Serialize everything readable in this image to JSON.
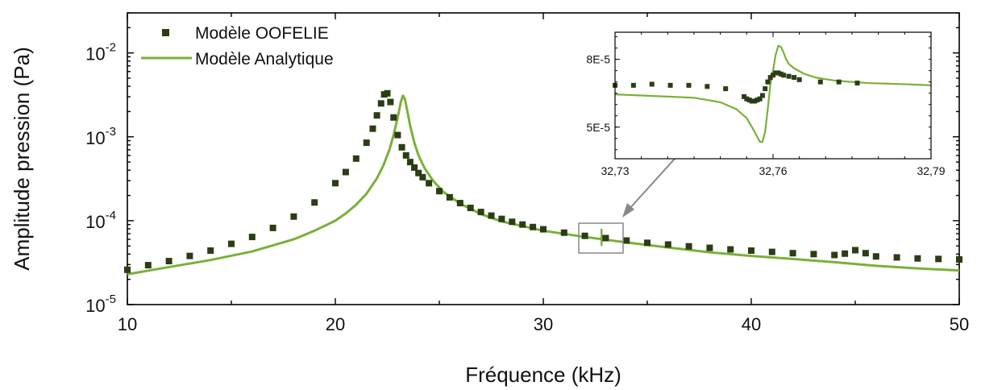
{
  "chart_data": [
    {
      "type": "line",
      "xlabel": "Fréquence (kHz)",
      "ylabel": "Amplitude pression (Pa)",
      "xlim": [
        10,
        50
      ],
      "ylim": [
        1e-05,
        0.03
      ],
      "yscale": "log",
      "grid": false,
      "legend_placement": "top-left",
      "x_ticks": [
        {
          "value": 10,
          "label": "10"
        },
        {
          "value": 20,
          "label": "20"
        },
        {
          "value": 30,
          "label": "30"
        },
        {
          "value": 40,
          "label": "40"
        },
        {
          "value": 50,
          "label": "50"
        }
      ],
      "y_ticks": [
        {
          "value": 1e-05,
          "base": "10",
          "exp": "-5"
        },
        {
          "value": 0.0001,
          "base": "10",
          "exp": "-4"
        },
        {
          "value": 0.001,
          "base": "10",
          "exp": "-3"
        },
        {
          "value": 0.01,
          "base": "10",
          "exp": "-2"
        }
      ],
      "series": [
        {
          "name": "Modèle OOFELIE",
          "kind": "scatter",
          "marker": "square",
          "color": "#2b3d14",
          "x": [
            10,
            11,
            12,
            13,
            14,
            15,
            16,
            17,
            18,
            19,
            20,
            20.5,
            21,
            21.5,
            21.8,
            22.0,
            22.2,
            22.35,
            22.5,
            22.65,
            22.8,
            23.0,
            23.2,
            23.4,
            23.6,
            23.8,
            24.0,
            24.2,
            24.5,
            25,
            25.5,
            26,
            26.5,
            27,
            27.5,
            28,
            28.5,
            29,
            29.5,
            30,
            31,
            32,
            33,
            34,
            35,
            36,
            37,
            38,
            39,
            40,
            41,
            42,
            43,
            44,
            44.5,
            45,
            45.5,
            46,
            47,
            48,
            49,
            50
          ],
          "y": [
            2.6e-05,
            2.95e-05,
            3.3e-05,
            3.8e-05,
            4.4e-05,
            5.3e-05,
            6.4e-05,
            8.2e-05,
            0.000112,
            0.000165,
            0.00028,
            0.00038,
            0.00055,
            0.00085,
            0.00125,
            0.0018,
            0.0025,
            0.0032,
            0.0033,
            0.0026,
            0.0017,
            0.00105,
            0.00075,
            0.0006,
            0.0005,
            0.00043,
            0.00037,
            0.00033,
            0.00028,
            0.000225,
            0.00019,
            0.000162,
            0.000142,
            0.000127,
            0.000115,
            0.000105,
            9.7e-05,
            9e-05,
            8.4e-05,
            7.9e-05,
            7.2e-05,
            6.6e-05,
            6.2e-05,
            5.8e-05,
            5.45e-05,
            5.2e-05,
            4.95e-05,
            4.75e-05,
            4.55e-05,
            4.4e-05,
            4.25e-05,
            4.1e-05,
            4e-05,
            3.9e-05,
            4.05e-05,
            4.45e-05,
            4.1e-05,
            3.75e-05,
            3.65e-05,
            3.55e-05,
            3.5e-05,
            3.45e-05
          ]
        },
        {
          "name": "Modèle Analytique",
          "kind": "line",
          "color": "#7ab03a",
          "x": [
            10,
            12,
            14,
            16,
            18,
            19,
            20,
            20.5,
            21,
            21.5,
            22,
            22.3,
            22.6,
            22.8,
            23.0,
            23.15,
            23.25,
            23.35,
            23.45,
            23.6,
            23.8,
            24.0,
            24.3,
            24.7,
            25.2,
            26,
            27,
            28,
            30,
            32,
            34,
            36,
            38,
            40,
            42,
            44,
            46,
            48,
            50
          ],
          "y": [
            2.3e-05,
            2.8e-05,
            3.4e-05,
            4.3e-05,
            6e-05,
            7.6e-05,
            0.0001,
            0.000122,
            0.000155,
            0.00021,
            0.00032,
            0.00045,
            0.0007,
            0.00105,
            0.0017,
            0.0026,
            0.0031,
            0.0028,
            0.0021,
            0.00135,
            0.00085,
            0.0006,
            0.00042,
            0.0003,
            0.00022,
            0.00016,
            0.00012,
            9.8e-05,
            7.6e-05,
            6.4e-05,
            5.5e-05,
            4.8e-05,
            4.2e-05,
            3.8e-05,
            3.5e-05,
            3.2e-05,
            2.9e-05,
            2.7e-05,
            2.55e-05
          ]
        }
      ]
    },
    {
      "type": "line",
      "role": "inset",
      "xlim": [
        32.73,
        32.79
      ],
      "ylim": [
        3.6e-05,
        9.2e-05
      ],
      "x_ticks": [
        {
          "value": 32.73,
          "label": "32,73"
        },
        {
          "value": 32.76,
          "label": "32,76"
        },
        {
          "value": 32.79,
          "label": "32,79"
        }
      ],
      "y_ticks": [
        {
          "value": 5e-05,
          "label": "5E-5"
        },
        {
          "value": 8e-05,
          "label": "8E-5"
        }
      ],
      "series": [
        {
          "name": "Modèle OOFELIE",
          "kind": "scatter",
          "marker": "square",
          "color": "#2b3d14",
          "x": [
            32.73,
            32.7335,
            32.737,
            32.7405,
            32.744,
            32.7475,
            32.751,
            32.7545,
            32.755,
            32.7555,
            32.756,
            32.7565,
            32.757,
            32.7575,
            32.758,
            32.7585,
            32.759,
            32.7595,
            32.76,
            32.7605,
            32.761,
            32.7615,
            32.762,
            32.763,
            32.764,
            32.765,
            32.769,
            32.7725,
            32.776
          ],
          "y": [
            6.85e-05,
            6.85e-05,
            6.9e-05,
            6.85e-05,
            6.85e-05,
            6.8e-05,
            6.7e-05,
            6.35e-05,
            6.25e-05,
            6.2e-05,
            6.15e-05,
            6.15e-05,
            6.2e-05,
            6.25e-05,
            6.4e-05,
            6.7e-05,
            7e-05,
            7.2e-05,
            7.3e-05,
            7.4e-05,
            7.4e-05,
            7.35e-05,
            7.3e-05,
            7.25e-05,
            7.2e-05,
            7.1e-05,
            7e-05,
            7e-05,
            6.95e-05
          ]
        },
        {
          "name": "Modèle Analytique",
          "kind": "line",
          "color": "#7ab03a",
          "x": [
            32.73,
            32.735,
            32.74,
            32.745,
            32.75,
            32.753,
            32.755,
            32.7565,
            32.7575,
            32.758,
            32.7585,
            32.759,
            32.7595,
            32.76,
            32.7605,
            32.761,
            32.7615,
            32.762,
            32.7625,
            32.763,
            32.764,
            32.766,
            32.768,
            32.772,
            32.778,
            32.785,
            32.79
          ],
          "y": [
            6.45e-05,
            6.4e-05,
            6.35e-05,
            6.3e-05,
            6.1e-05,
            5.8e-05,
            5.4e-05,
            4.8e-05,
            4.35e-05,
            4.35e-05,
            4.8e-05,
            5.8e-05,
            6.9e-05,
            7.5e-05,
            8.2e-05,
            8.6e-05,
            8.55e-05,
            8.3e-05,
            8e-05,
            7.8e-05,
            7.6e-05,
            7.35e-05,
            7.2e-05,
            7.05e-05,
            6.95e-05,
            6.9e-05,
            6.85e-05
          ]
        }
      ]
    }
  ]
}
